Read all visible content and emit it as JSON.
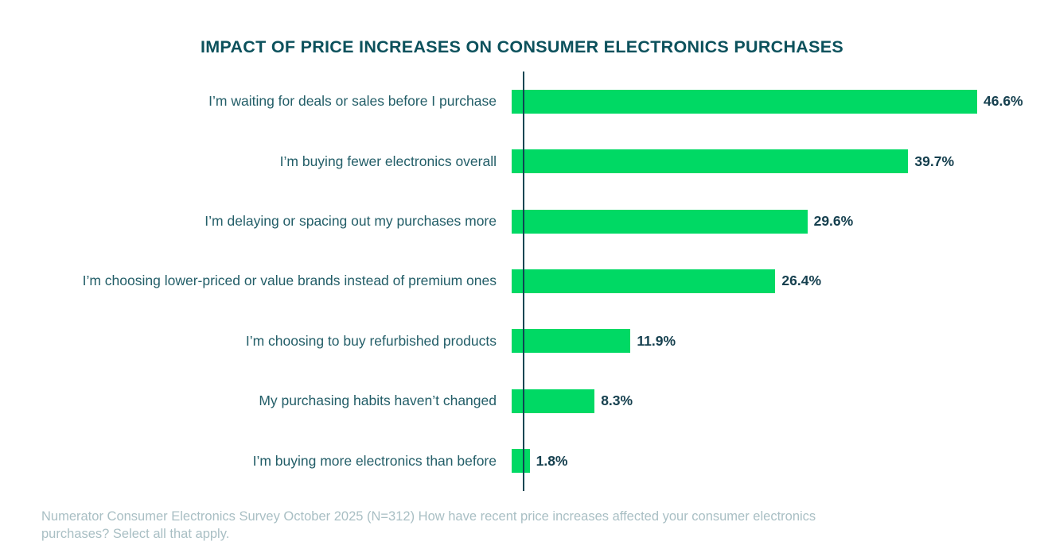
{
  "colors": {
    "bar_green": "#00d964",
    "title_teal": "#0c515c",
    "category_label_teal": "#235e68",
    "value_label_teal": "#16404f",
    "axis_teal": "#0e4653",
    "footer_gray": "#a9bfc4",
    "background": "#ffffff"
  },
  "chart_data": {
    "type": "bar",
    "orientation": "horizontal",
    "title": "IMPACT OF PRICE INCREASES ON CONSUMER ELECTRONICS PURCHASES",
    "categories": [
      "I’m waiting for deals or sales before I purchase",
      "I’m buying fewer electronics overall",
      "I’m delaying or spacing out my purchases more",
      "I’m choosing lower-priced or value brands instead of premium ones",
      "I’m choosing to buy refurbished products",
      "My purchasing habits haven’t changed",
      "I’m buying more electronics than before"
    ],
    "values": [
      46.6,
      39.7,
      29.6,
      26.4,
      11.9,
      8.3,
      1.8
    ],
    "value_labels": [
      "46.6%",
      "39.7%",
      "29.6%",
      "26.4%",
      "11.9%",
      "8.3%",
      "1.8%"
    ],
    "xlabel": "",
    "ylabel": "",
    "xlim": [
      0,
      46.6
    ],
    "grid": false,
    "legend": false,
    "source_note": "Numerator Consumer Electronics Survey October 2025 (N=312) How have recent price increases affected your consumer electronics purchases? Select all that apply."
  }
}
